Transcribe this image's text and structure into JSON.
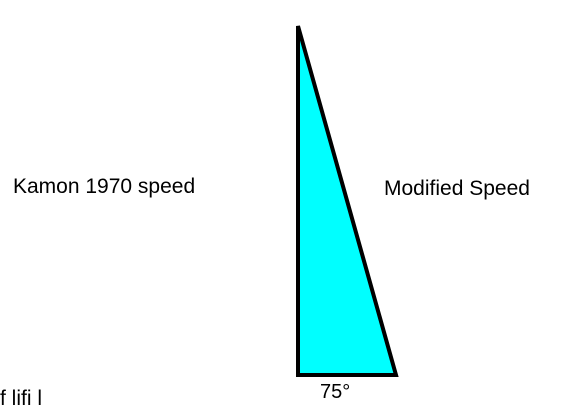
{
  "labels": {
    "left_side": "Kamon 1970 speed",
    "hypotenuse": "Modified Speed",
    "angle": "75°",
    "bottom_cut": "f     lifi          l"
  },
  "colors": {
    "fill": "#00FFFF",
    "stroke": "#000000"
  }
}
